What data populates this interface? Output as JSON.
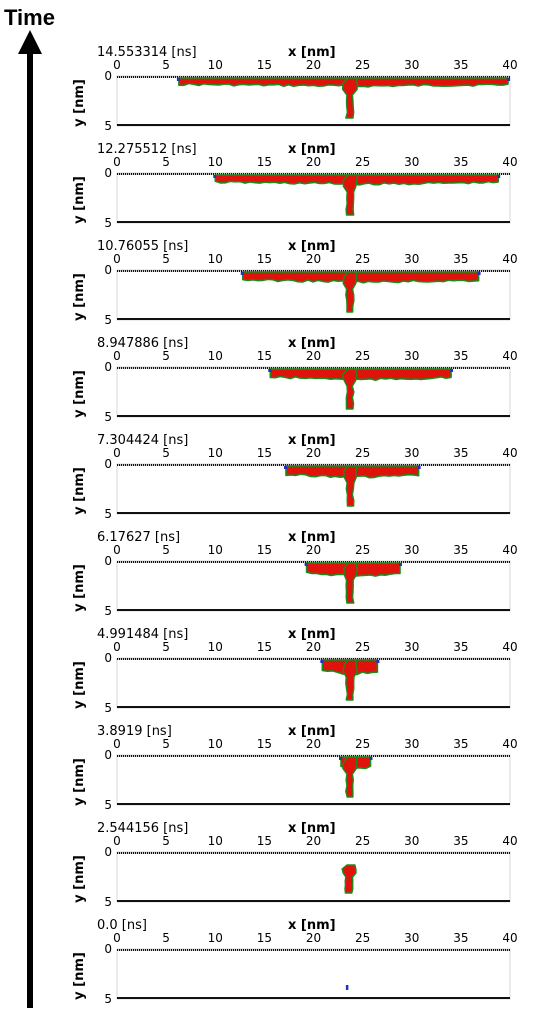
{
  "time_axis": {
    "label": "Time"
  },
  "chart_data": [
    {
      "type": "heatmap",
      "time_label": "14.553314 [ns]",
      "xlabel": "x [nm]",
      "ylabel": "y [nm]",
      "xticks": [
        "0",
        "5",
        "10",
        "15",
        "20",
        "25",
        "30",
        "35",
        "40"
      ],
      "yticks": [
        "0",
        "5"
      ],
      "xlim": [
        0,
        40
      ],
      "ylim": [
        5,
        0
      ],
      "grid": false,
      "legend": "none",
      "colors": {
        "bulk": "#e0120c",
        "edge": "#1c8a1c",
        "tip": "#2233bb",
        "wall": "#111111"
      },
      "film_extent_nm": [
        6.3,
        39.8
      ],
      "film_thickness_nm": 0.7,
      "stem_x_nm": 23.7,
      "stem_depth_nm": 4.2
    },
    {
      "type": "heatmap",
      "time_label": "12.275512 [ns]",
      "xlabel": "x [nm]",
      "ylabel": "y [nm]",
      "xticks": [
        "0",
        "5",
        "10",
        "15",
        "20",
        "25",
        "30",
        "35",
        "40"
      ],
      "yticks": [
        "0",
        "5"
      ],
      "xlim": [
        0,
        40
      ],
      "ylim": [
        5,
        0
      ],
      "grid": false,
      "legend": "none",
      "colors": {
        "bulk": "#e0120c",
        "edge": "#1c8a1c",
        "tip": "#2233bb",
        "wall": "#111111"
      },
      "film_extent_nm": [
        10.0,
        38.8
      ],
      "film_thickness_nm": 0.8,
      "stem_x_nm": 23.7,
      "stem_depth_nm": 4.2
    },
    {
      "type": "heatmap",
      "time_label": "10.76055 [ns]",
      "xlabel": "x [nm]",
      "ylabel": "y [nm]",
      "xticks": [
        "0",
        "5",
        "10",
        "15",
        "20",
        "25",
        "30",
        "35",
        "40"
      ],
      "yticks": [
        "0",
        "5"
      ],
      "xlim": [
        0,
        40
      ],
      "ylim": [
        5,
        0
      ],
      "grid": false,
      "legend": "none",
      "colors": {
        "bulk": "#e0120c",
        "edge": "#1c8a1c",
        "tip": "#2233bb",
        "wall": "#111111"
      },
      "film_extent_nm": [
        12.8,
        36.8
      ],
      "film_thickness_nm": 0.9,
      "stem_x_nm": 23.7,
      "stem_depth_nm": 4.2
    },
    {
      "type": "heatmap",
      "time_label": "8.947886 [ns]",
      "xlabel": "x [nm]",
      "ylabel": "y [nm]",
      "xticks": [
        "0",
        "5",
        "10",
        "15",
        "20",
        "25",
        "30",
        "35",
        "40"
      ],
      "yticks": [
        "0",
        "5"
      ],
      "xlim": [
        0,
        40
      ],
      "ylim": [
        5,
        0
      ],
      "grid": false,
      "legend": "none",
      "colors": {
        "bulk": "#e0120c",
        "edge": "#1c8a1c",
        "tip": "#2233bb",
        "wall": "#111111"
      },
      "film_extent_nm": [
        15.6,
        34.0
      ],
      "film_thickness_nm": 0.95,
      "stem_x_nm": 23.7,
      "stem_depth_nm": 4.2
    },
    {
      "type": "heatmap",
      "time_label": "7.304424 [ns]",
      "xlabel": "x [nm]",
      "ylabel": "y [nm]",
      "xticks": [
        "0",
        "5",
        "10",
        "15",
        "20",
        "25",
        "30",
        "35",
        "40"
      ],
      "yticks": [
        "0",
        "5"
      ],
      "xlim": [
        0,
        40
      ],
      "ylim": [
        5,
        0
      ],
      "grid": false,
      "legend": "none",
      "colors": {
        "bulk": "#e0120c",
        "edge": "#1c8a1c",
        "tip": "#2233bb",
        "wall": "#111111"
      },
      "film_extent_nm": [
        17.2,
        30.7
      ],
      "film_thickness_nm": 1.0,
      "stem_x_nm": 23.7,
      "stem_depth_nm": 4.2
    },
    {
      "type": "heatmap",
      "time_label": "6.17627 [ns]",
      "xlabel": "x [nm]",
      "ylabel": "y [nm]",
      "xticks": [
        "0",
        "5",
        "10",
        "15",
        "20",
        "25",
        "30",
        "35",
        "40"
      ],
      "yticks": [
        "0",
        "5"
      ],
      "xlim": [
        0,
        40
      ],
      "ylim": [
        5,
        0
      ],
      "grid": false,
      "legend": "none",
      "colors": {
        "bulk": "#e0120c",
        "edge": "#1c8a1c",
        "tip": "#2233bb",
        "wall": "#111111"
      },
      "film_extent_nm": [
        19.3,
        28.8
      ],
      "film_thickness_nm": 1.2,
      "stem_x_nm": 23.7,
      "stem_depth_nm": 4.2
    },
    {
      "type": "heatmap",
      "time_label": "4.991484 [ns]",
      "xlabel": "x [nm]",
      "ylabel": "y [nm]",
      "xticks": [
        "0",
        "5",
        "10",
        "15",
        "20",
        "25",
        "30",
        "35",
        "40"
      ],
      "yticks": [
        "0",
        "5"
      ],
      "xlim": [
        0,
        40
      ],
      "ylim": [
        5,
        0
      ],
      "grid": false,
      "legend": "none",
      "colors": {
        "bulk": "#e0120c",
        "edge": "#1c8a1c",
        "tip": "#2233bb",
        "wall": "#111111"
      },
      "film_extent_nm": [
        20.9,
        26.5
      ],
      "film_thickness_nm": 1.3,
      "stem_x_nm": 23.7,
      "stem_depth_nm": 4.2
    },
    {
      "type": "heatmap",
      "time_label": "3.8919 [ns]",
      "xlabel": "x [nm]",
      "ylabel": "y [nm]",
      "xticks": [
        "0",
        "5",
        "10",
        "15",
        "20",
        "25",
        "30",
        "35",
        "40"
      ],
      "yticks": [
        "0",
        "5"
      ],
      "xlim": [
        0,
        40
      ],
      "ylim": [
        5,
        0
      ],
      "grid": false,
      "legend": "none",
      "colors": {
        "bulk": "#e0120c",
        "edge": "#1c8a1c",
        "tip": "#2233bb",
        "wall": "#111111"
      },
      "film_extent_nm": [
        22.8,
        25.8
      ],
      "film_thickness_nm": 1.1,
      "stem_x_nm": 23.7,
      "stem_depth_nm": 4.2
    },
    {
      "type": "heatmap",
      "time_label": "2.544156 [ns]",
      "xlabel": "x [nm]",
      "ylabel": "y [nm]",
      "xticks": [
        "0",
        "5",
        "10",
        "15",
        "20",
        "25",
        "30",
        "35",
        "40"
      ],
      "yticks": [
        "0",
        "5"
      ],
      "xlim": [
        0,
        40
      ],
      "ylim": [
        5,
        0
      ],
      "grid": false,
      "legend": "none",
      "colors": {
        "bulk": "#e0120c",
        "edge": "#1c8a1c",
        "tip": "#2233bb",
        "wall": "#111111"
      },
      "film_extent_nm": null,
      "film_thickness_nm": 0,
      "stem_x_nm": 23.6,
      "stem_top_nm": 1.3,
      "stem_depth_nm": 4.1
    },
    {
      "type": "heatmap",
      "time_label": "0.0 [ns]",
      "xlabel": "x [nm]",
      "ylabel": "y [nm]",
      "xticks": [
        "0",
        "5",
        "10",
        "15",
        "20",
        "25",
        "30",
        "35",
        "40"
      ],
      "yticks": [
        "0",
        "5"
      ],
      "xlim": [
        0,
        40
      ],
      "ylim": [
        5,
        0
      ],
      "grid": false,
      "legend": "none",
      "colors": {
        "bulk": "#e0120c",
        "edge": "#1c8a1c",
        "tip": "#2233bb",
        "wall": "#111111"
      },
      "film_extent_nm": null,
      "film_thickness_nm": 0,
      "seed_x_nm": 23.4,
      "seed_y_nm": [
        3.6,
        4.1
      ]
    }
  ]
}
